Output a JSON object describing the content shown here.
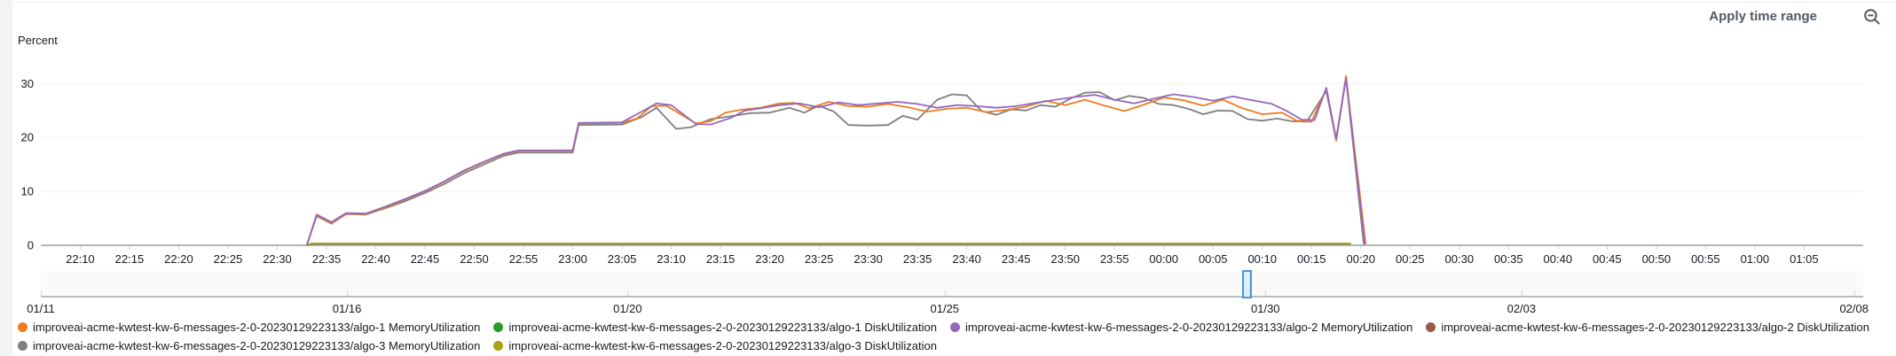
{
  "colors": {
    "text": "#16191f",
    "link": "#545b64",
    "grid": "#eef1f2",
    "axis": "#aeb8bb",
    "tick": "#cdd5d8",
    "band_bg": "#fafafa",
    "brush_fill": "#cfe5f8",
    "brush_border": "#4f94d8"
  },
  "header": {
    "apply_label": "Apply time range",
    "zoom_out_icon": "magnifier-minus-icon"
  },
  "chart_data": {
    "type": "line",
    "title": "",
    "ylabel": "Percent",
    "ylim": [
      0,
      33.5
    ],
    "yticks": [
      0,
      10,
      20,
      30
    ],
    "x_unit": "minutes since 22:06 (01/29 -> 01/30)",
    "xlim": [
      0,
      185
    ],
    "xtick_start": 4,
    "xtick_step": 5,
    "xtick_labels": [
      "22:10",
      "22:15",
      "22:20",
      "22:25",
      "22:30",
      "22:35",
      "22:40",
      "22:45",
      "22:50",
      "22:55",
      "23:00",
      "23:05",
      "23:10",
      "23:15",
      "23:20",
      "23:25",
      "23:30",
      "23:35",
      "23:40",
      "23:45",
      "23:50",
      "23:55",
      "00:00",
      "00:05",
      "00:10",
      "00:15",
      "00:20",
      "00:25",
      "00:30",
      "00:35",
      "00:40",
      "00:45",
      "00:50",
      "00:55",
      "01:00",
      "01:05"
    ],
    "grid": true,
    "legend_position": "bottom",
    "series": [
      {
        "name": "improveai-acme-kwtest-kw-6-messages-2-0-20230129223133/algo-1 DiskUtilization",
        "color": "#2a9a2a",
        "points": [
          [
            27,
            0
          ],
          [
            27.5,
            0.25
          ],
          [
            133,
            0.25
          ]
        ]
      },
      {
        "name": "improveai-acme-kwtest-kw-6-messages-2-0-20230129223133/algo-2 DiskUtilization",
        "color": "#9a5b4b",
        "points": [
          [
            27,
            0
          ],
          [
            27.5,
            0.3
          ],
          [
            133,
            0.3
          ]
        ]
      },
      {
        "name": "improveai-acme-kwtest-kw-6-messages-2-0-20230129223133/algo-3 DiskUtilization",
        "color": "#aba114",
        "points": [
          [
            27,
            0
          ],
          [
            27.5,
            0.35
          ],
          [
            133,
            0.35
          ]
        ]
      },
      {
        "name": "improveai-acme-kwtest-kw-6-messages-2-0-20230129223133/algo-3 MemoryUtilization",
        "color": "#7f7f7f",
        "points": [
          [
            27,
            0
          ],
          [
            28,
            5.4
          ],
          [
            29.5,
            4.0
          ],
          [
            31,
            5.8
          ],
          [
            33,
            5.7
          ],
          [
            35,
            6.9
          ],
          [
            37,
            8.2
          ],
          [
            39,
            9.7
          ],
          [
            41,
            11.4
          ],
          [
            43,
            13.4
          ],
          [
            45,
            15.0
          ],
          [
            47,
            16.6
          ],
          [
            48.5,
            17.2
          ],
          [
            54,
            17.2
          ],
          [
            54.6,
            22.3
          ],
          [
            59,
            22.4
          ],
          [
            61,
            23.8
          ],
          [
            62.5,
            25.5
          ],
          [
            64.5,
            21.6
          ],
          [
            66,
            21.9
          ],
          [
            68,
            23.4
          ],
          [
            70,
            23.9
          ],
          [
            72,
            24.5
          ],
          [
            74,
            24.6
          ],
          [
            76,
            25.5
          ],
          [
            77.5,
            24.6
          ],
          [
            79,
            25.9
          ],
          [
            80.5,
            24.8
          ],
          [
            82,
            22.3
          ],
          [
            84,
            22.2
          ],
          [
            86,
            22.3
          ],
          [
            87.5,
            24.0
          ],
          [
            89,
            23.3
          ],
          [
            91,
            27.0
          ],
          [
            92.5,
            28.0
          ],
          [
            94,
            27.8
          ],
          [
            95.5,
            24.9
          ],
          [
            97,
            24.2
          ],
          [
            98.5,
            25.2
          ],
          [
            100,
            25.0
          ],
          [
            101.5,
            26.0
          ],
          [
            103,
            25.7
          ],
          [
            104.5,
            27.2
          ],
          [
            106,
            28.3
          ],
          [
            107.5,
            28.4
          ],
          [
            109,
            26.9
          ],
          [
            110.5,
            27.7
          ],
          [
            112,
            27.3
          ],
          [
            113.5,
            26.2
          ],
          [
            115,
            26.0
          ],
          [
            116.5,
            25.3
          ],
          [
            118,
            24.3
          ],
          [
            119.5,
            25.0
          ],
          [
            121,
            24.9
          ],
          [
            122.5,
            23.4
          ],
          [
            124,
            23.1
          ],
          [
            125.5,
            23.5
          ],
          [
            127,
            23.0
          ],
          [
            128.5,
            22.9
          ],
          [
            130.5,
            28.6
          ],
          [
            131.5,
            19.4
          ],
          [
            132.5,
            31.0
          ],
          [
            134.3,
            0.2
          ]
        ]
      },
      {
        "name": "improveai-acme-kwtest-kw-6-messages-2-0-20230129223133/algo-1 MemoryUtilization",
        "color": "#ee7c1e",
        "points": [
          [
            27,
            0
          ],
          [
            28,
            5.5
          ],
          [
            29.5,
            4.1
          ],
          [
            31,
            5.9
          ],
          [
            33,
            5.8
          ],
          [
            35,
            7.0
          ],
          [
            37,
            8.5
          ],
          [
            39,
            10.0
          ],
          [
            41,
            11.8
          ],
          [
            43,
            13.8
          ],
          [
            45,
            15.4
          ],
          [
            47,
            16.9
          ],
          [
            48.5,
            17.5
          ],
          [
            54,
            17.5
          ],
          [
            54.6,
            22.6
          ],
          [
            59,
            22.7
          ],
          [
            60.5,
            23.5
          ],
          [
            62,
            25.8
          ],
          [
            63.5,
            25.9
          ],
          [
            66.5,
            22.6
          ],
          [
            68,
            23.0
          ],
          [
            69.5,
            24.6
          ],
          [
            71,
            25.1
          ],
          [
            73,
            25.5
          ],
          [
            75,
            26.3
          ],
          [
            76.5,
            26.4
          ],
          [
            78,
            25.4
          ],
          [
            80,
            26.6
          ],
          [
            82,
            25.8
          ],
          [
            84,
            25.7
          ],
          [
            86,
            26.2
          ],
          [
            88,
            25.6
          ],
          [
            90,
            24.8
          ],
          [
            92,
            25.3
          ],
          [
            94,
            25.5
          ],
          [
            96,
            24.7
          ],
          [
            98,
            25.1
          ],
          [
            100,
            25.7
          ],
          [
            102,
            26.8
          ],
          [
            104,
            26.0
          ],
          [
            106,
            27.0
          ],
          [
            108,
            25.9
          ],
          [
            110,
            24.9
          ],
          [
            112,
            26.1
          ],
          [
            114,
            27.4
          ],
          [
            116,
            26.9
          ],
          [
            118,
            25.9
          ],
          [
            120,
            27.0
          ],
          [
            122,
            25.4
          ],
          [
            124,
            24.3
          ],
          [
            126,
            24.6
          ],
          [
            127.5,
            23.1
          ],
          [
            129,
            22.9
          ],
          [
            130.5,
            29.0
          ],
          [
            131.5,
            19.5
          ],
          [
            132.5,
            31.4
          ],
          [
            134.5,
            0.2
          ]
        ]
      },
      {
        "name": "improveai-acme-kwtest-kw-6-messages-2-0-20230129223133/algo-2 MemoryUtilization",
        "color": "#9468bd",
        "points": [
          [
            27,
            0
          ],
          [
            28,
            5.7
          ],
          [
            29.5,
            4.3
          ],
          [
            31,
            6.0
          ],
          [
            33,
            5.9
          ],
          [
            35,
            7.2
          ],
          [
            37,
            8.6
          ],
          [
            39,
            10.1
          ],
          [
            41,
            11.9
          ],
          [
            43,
            13.9
          ],
          [
            45,
            15.5
          ],
          [
            47,
            17.0
          ],
          [
            48.5,
            17.6
          ],
          [
            54,
            17.6
          ],
          [
            54.6,
            22.7
          ],
          [
            59,
            22.8
          ],
          [
            61,
            24.8
          ],
          [
            62.5,
            26.3
          ],
          [
            64,
            26.0
          ],
          [
            66.5,
            22.5
          ],
          [
            68,
            22.4
          ],
          [
            70,
            23.6
          ],
          [
            71.5,
            25.0
          ],
          [
            73,
            25.4
          ],
          [
            75,
            26.0
          ],
          [
            77,
            26.3
          ],
          [
            79,
            25.6
          ],
          [
            81,
            26.5
          ],
          [
            83,
            26.0
          ],
          [
            85,
            26.3
          ],
          [
            87,
            26.6
          ],
          [
            89,
            26.2
          ],
          [
            91,
            25.5
          ],
          [
            93,
            26.0
          ],
          [
            95,
            25.8
          ],
          [
            97,
            25.5
          ],
          [
            99,
            25.8
          ],
          [
            101,
            26.4
          ],
          [
            103,
            27.0
          ],
          [
            105,
            27.5
          ],
          [
            107,
            27.9
          ],
          [
            109,
            27.0
          ],
          [
            111,
            26.3
          ],
          [
            113,
            27.2
          ],
          [
            115,
            28.0
          ],
          [
            117,
            27.5
          ],
          [
            119,
            26.8
          ],
          [
            121,
            27.6
          ],
          [
            123,
            26.9
          ],
          [
            125,
            26.2
          ],
          [
            126.5,
            24.9
          ],
          [
            128,
            23.3
          ],
          [
            129.3,
            23.2
          ],
          [
            130.5,
            29.2
          ],
          [
            131.5,
            19.8
          ],
          [
            132.5,
            31.0
          ],
          [
            134.4,
            0.2
          ]
        ]
      }
    ],
    "overview_axis": {
      "labels": [
        {
          "label": "01/11",
          "f": 0.0
        },
        {
          "label": "01/16",
          "f": 0.168
        },
        {
          "label": "01/20",
          "f": 0.322
        },
        {
          "label": "01/25",
          "f": 0.496
        },
        {
          "label": "01/30",
          "f": 0.672
        },
        {
          "label": "02/03",
          "f": 0.8125
        },
        {
          "label": "02/08",
          "f": 0.995
        }
      ],
      "brush": {
        "f": 0.659
      }
    }
  },
  "legend": {
    "rows": [
      [
        4,
        0,
        5,
        1
      ],
      [
        3,
        2
      ]
    ]
  }
}
